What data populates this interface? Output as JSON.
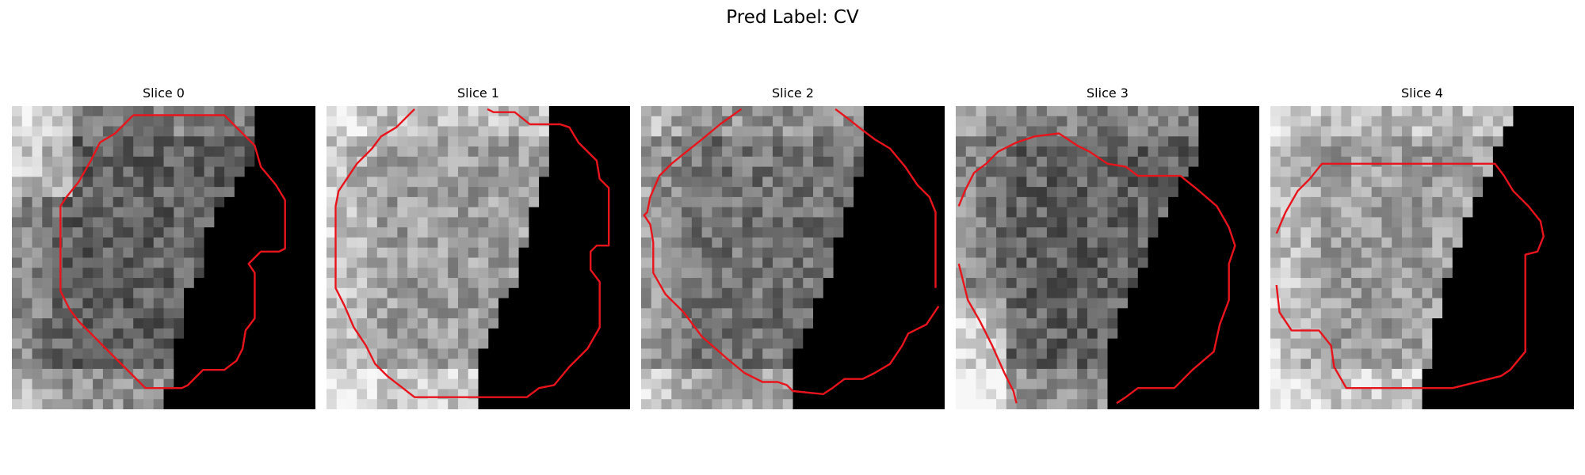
{
  "figure": {
    "title": "Pred Label: CV",
    "contour_color": "#e8141c",
    "panels": [
      {
        "title": "Slice 0",
        "tone": "dark"
      },
      {
        "title": "Slice 1",
        "tone": "light"
      },
      {
        "title": "Slice 2",
        "tone": "mid"
      },
      {
        "title": "Slice 3",
        "tone": "dark"
      },
      {
        "title": "Slice 4",
        "tone": "light"
      }
    ]
  }
}
